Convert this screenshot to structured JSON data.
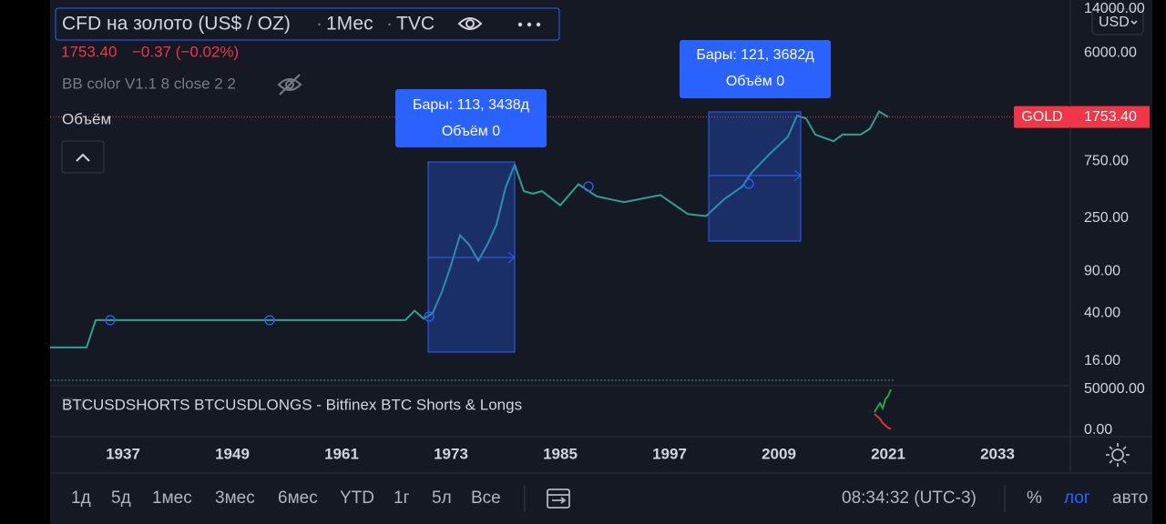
{
  "header": {
    "title": "CFD на золото (US$ / OZ)",
    "interval": "1Мес",
    "source": "TVC",
    "price": "1753.40",
    "change": "−0.37 (−0.02%)",
    "indicator": "BB color V1.1 8 close 2 2",
    "volume_label": "Объём"
  },
  "currency": "USD",
  "price_tag": {
    "symbol": "GOLD"
  },
  "measures": [
    {
      "bars": "Бары: 113, 3438д",
      "volume": "Объём 0"
    },
    {
      "bars": "Бары: 121, 3682д",
      "volume": "Объём 0"
    }
  ],
  "chart_data": [
    {
      "type": "line",
      "log_scale": true,
      "color": "#2ea18f",
      "x": [
        1929,
        1933,
        1934,
        1968,
        1969,
        1970,
        1971,
        1972,
        1973,
        1974,
        1975,
        1976,
        1977,
        1978,
        1979,
        1980,
        1981,
        1982,
        1983,
        1985,
        1987,
        1989,
        1992,
        1996,
        1999,
        2001,
        2003,
        2005,
        2006,
        2008,
        2010,
        2011,
        2012,
        2013,
        2015,
        2016,
        2018,
        2019,
        2020,
        2021
      ],
      "values": [
        20.7,
        20.7,
        35,
        35,
        42,
        36,
        40,
        60,
        100,
        180,
        150,
        110,
        150,
        220,
        450,
        700,
        420,
        400,
        420,
        320,
        480,
        380,
        340,
        390,
        270,
        260,
        360,
        460,
        600,
        860,
        1200,
        1800,
        1700,
        1250,
        1100,
        1250,
        1250,
        1400,
        1950,
        1753.4
      ],
      "xlim": [
        1929,
        2041
      ],
      "xticks": [
        1937,
        1949,
        1961,
        1973,
        1985,
        1997,
        2009,
        2021,
        2033
      ],
      "ylim": [
        11,
        14000
      ],
      "yticks": [
        {
          "value": 16,
          "label": "16.00"
        },
        {
          "value": 40,
          "label": "40.00"
        },
        {
          "value": 90,
          "label": "90.00"
        },
        {
          "value": 250,
          "label": "250.00"
        },
        {
          "value": 750,
          "label": "750.00"
        },
        {
          "value": 6000,
          "label": "6000.00"
        },
        {
          "value": 14000,
          "label": "14000.00"
        }
      ],
      "price_line": {
        "value": 1753.4,
        "label": "1753.40",
        "color": "#f23645"
      }
    },
    {
      "type": "line",
      "title": "BTCUSDSHORTS BTCUSDLONGS - Bitfinex BTC Shorts & Longs",
      "x": [
        2019.5,
        2019.8,
        2020.1,
        2020.4,
        2020.7,
        2021.0,
        2021.3
      ],
      "series": [
        {
          "color": "#26a641",
          "values": [
            22000,
            28000,
            33000,
            27000,
            38000,
            42000,
            50000
          ]
        },
        {
          "color": "#e0312f",
          "values": [
            20000,
            17000,
            14000,
            9000,
            6000,
            3000,
            1500
          ]
        }
      ],
      "ylim": [
        0,
        50000
      ],
      "yticks": [
        {
          "value": 0,
          "label": "0.00"
        },
        {
          "value": 50000,
          "label": "50000.00"
        }
      ]
    }
  ],
  "toolbar": {
    "ranges": [
      "1д",
      "5д",
      "1мес",
      "3мес",
      "6мес",
      "YTD",
      "1г",
      "5л",
      "Все"
    ],
    "time": "08:34:32 (UTC-3)",
    "percent": "%",
    "log": "лог",
    "auto": "авто"
  }
}
